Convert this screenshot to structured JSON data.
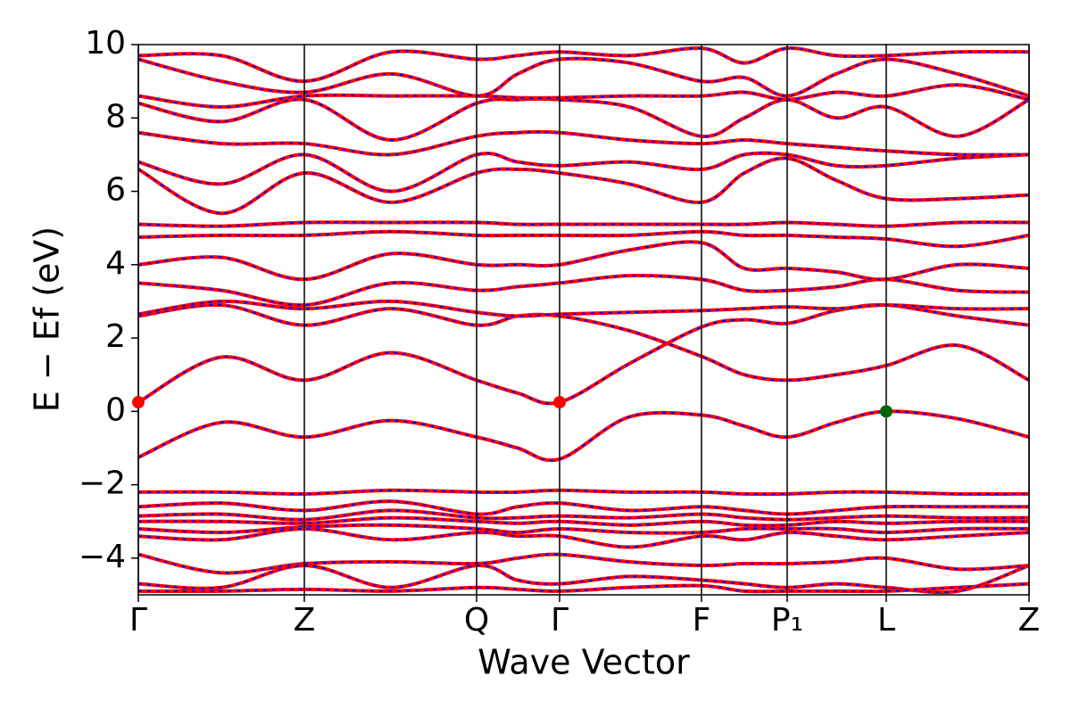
{
  "chart_data": {
    "type": "line",
    "xlabel": "Wave Vector",
    "ylabel": "E − Ef (eV)",
    "xlim": [
      0,
      9.98
    ],
    "ylim": [
      -5,
      10
    ],
    "xticks": [
      {
        "value": 0,
        "label": "Γ"
      },
      {
        "value": 1.86,
        "label": "Z"
      },
      {
        "value": 3.79,
        "label": "Q"
      },
      {
        "value": 4.72,
        "label": "Γ"
      },
      {
        "value": 6.31,
        "label": "F"
      },
      {
        "value": 7.27,
        "label": "P₁"
      },
      {
        "value": 8.38,
        "label": "L"
      },
      {
        "value": 9.98,
        "label": "Z"
      }
    ],
    "yticks": [
      {
        "value": -4,
        "label": "−4"
      },
      {
        "value": -2,
        "label": "−2"
      },
      0,
      2,
      4,
      6,
      8,
      10
    ],
    "grid": "x",
    "color": "#ff0000",
    "overlay_color": "#0000ff",
    "x": [
      0,
      0.93,
      1.86,
      2.83,
      3.79,
      4.25,
      4.72,
      5.5,
      6.31,
      6.79,
      7.27,
      7.82,
      8.38,
      9.18,
      9.98
    ],
    "series": [
      {
        "values": [
          0.25,
          1.48,
          0.85,
          1.6,
          0.85,
          0.5,
          0.25,
          1.3,
          2.3,
          2.5,
          2.4,
          2.75,
          2.9,
          2.6,
          2.35
        ]
      },
      {
        "values": [
          2.6,
          2.9,
          2.35,
          2.8,
          2.35,
          2.6,
          2.6,
          2.2,
          1.5,
          1.0,
          0.85,
          1.0,
          1.25,
          1.8,
          0.85
        ]
      },
      {
        "values": [
          2.65,
          3.0,
          2.8,
          3.0,
          2.7,
          2.6,
          2.65,
          2.7,
          2.75,
          2.8,
          2.85,
          2.8,
          2.9,
          2.8,
          2.8
        ]
      },
      {
        "values": [
          3.5,
          3.3,
          2.9,
          3.5,
          3.3,
          3.4,
          3.5,
          3.7,
          3.6,
          3.3,
          3.3,
          3.4,
          3.6,
          3.3,
          3.25
        ]
      },
      {
        "values": [
          4.0,
          4.2,
          3.6,
          4.3,
          4.0,
          4.0,
          4.0,
          4.4,
          4.6,
          3.9,
          3.9,
          3.8,
          3.6,
          4.0,
          3.9
        ]
      },
      {
        "values": [
          4.75,
          4.8,
          4.8,
          4.9,
          4.8,
          4.8,
          4.8,
          4.8,
          4.9,
          4.8,
          4.8,
          4.75,
          4.7,
          4.5,
          4.8
        ]
      },
      {
        "values": [
          5.1,
          5.05,
          5.15,
          5.15,
          5.15,
          5.1,
          5.1,
          5.1,
          5.1,
          5.1,
          5.15,
          5.1,
          5.05,
          5.15,
          5.15
        ]
      },
      {
        "values": [
          6.6,
          5.4,
          6.5,
          5.7,
          6.5,
          6.6,
          6.5,
          6.2,
          5.7,
          6.5,
          6.9,
          6.3,
          5.8,
          5.8,
          5.9
        ]
      },
      {
        "values": [
          6.8,
          6.2,
          7.0,
          6.0,
          7.0,
          6.8,
          6.7,
          6.8,
          6.6,
          7.0,
          7.0,
          6.7,
          6.7,
          6.9,
          7.0
        ]
      },
      {
        "values": [
          7.6,
          7.3,
          7.3,
          7.0,
          7.5,
          7.6,
          7.6,
          7.4,
          7.3,
          7.4,
          7.3,
          7.2,
          7.1,
          7.0,
          7.0
        ]
      },
      {
        "values": [
          8.4,
          7.9,
          8.5,
          7.4,
          8.4,
          8.5,
          8.5,
          8.3,
          7.5,
          8.0,
          8.5,
          8.0,
          8.3,
          7.5,
          8.5
        ]
      },
      {
        "values": [
          8.6,
          8.3,
          8.6,
          8.6,
          8.6,
          8.55,
          8.55,
          8.6,
          8.6,
          8.7,
          8.5,
          8.7,
          8.6,
          8.9,
          8.5
        ]
      },
      {
        "values": [
          9.6,
          9.0,
          8.7,
          9.2,
          8.6,
          9.2,
          9.6,
          9.5,
          9.0,
          9.1,
          8.6,
          9.2,
          9.6,
          9.2,
          8.6
        ]
      },
      {
        "values": [
          9.7,
          9.7,
          9.0,
          9.8,
          9.6,
          9.7,
          9.8,
          9.7,
          9.9,
          9.5,
          9.9,
          9.7,
          9.7,
          9.8,
          9.8
        ]
      },
      {
        "values": [
          -1.25,
          -0.3,
          -0.7,
          -0.25,
          -0.7,
          -1.0,
          -1.3,
          -0.15,
          -0.1,
          -0.4,
          -0.7,
          -0.3,
          0,
          -0.2,
          -0.7
        ]
      },
      {
        "values": [
          -2.2,
          -2.2,
          -2.25,
          -2.15,
          -2.2,
          -2.2,
          -2.15,
          -2.2,
          -2.2,
          -2.25,
          -2.25,
          -2.2,
          -2.2,
          -2.25,
          -2.25
        ]
      },
      {
        "values": [
          -2.6,
          -2.5,
          -2.7,
          -2.45,
          -2.8,
          -2.6,
          -2.5,
          -2.7,
          -2.6,
          -2.7,
          -2.8,
          -2.7,
          -2.6,
          -2.6,
          -2.6
        ]
      },
      {
        "values": [
          -2.85,
          -2.8,
          -2.95,
          -2.7,
          -2.9,
          -2.9,
          -2.85,
          -2.9,
          -2.8,
          -2.9,
          -2.95,
          -2.9,
          -2.85,
          -2.9,
          -2.9
        ]
      },
      {
        "values": [
          -3.0,
          -3.0,
          -3.05,
          -2.9,
          -3.0,
          -3.05,
          -3.0,
          -3.1,
          -3.0,
          -3.1,
          -3.1,
          -3.0,
          -3.05,
          -3.0,
          -3.0
        ]
      },
      {
        "values": [
          -3.2,
          -3.3,
          -3.15,
          -3.1,
          -3.2,
          -3.3,
          -3.2,
          -3.3,
          -3.3,
          -3.2,
          -3.2,
          -3.2,
          -3.3,
          -3.2,
          -3.2
        ]
      },
      {
        "values": [
          -3.4,
          -3.5,
          -3.2,
          -3.5,
          -3.3,
          -3.4,
          -3.4,
          -3.7,
          -3.4,
          -3.5,
          -3.3,
          -3.4,
          -3.5,
          -3.4,
          -3.3
        ]
      },
      {
        "values": [
          -3.9,
          -4.4,
          -4.15,
          -4.1,
          -4.15,
          -4.0,
          -3.9,
          -4.1,
          -4.2,
          -4.15,
          -4.15,
          -4.1,
          -4.0,
          -4.3,
          -4.2
        ]
      },
      {
        "values": [
          -4.7,
          -4.8,
          -4.2,
          -4.8,
          -4.2,
          -4.6,
          -4.7,
          -4.5,
          -4.6,
          -4.7,
          -4.8,
          -4.7,
          -4.8,
          -4.9,
          -4.2
        ]
      },
      {
        "values": [
          -4.9,
          -4.9,
          -4.85,
          -4.9,
          -4.8,
          -4.85,
          -4.9,
          -4.8,
          -4.75,
          -4.9,
          -4.9,
          -4.9,
          -4.9,
          -4.8,
          -4.7
        ]
      }
    ],
    "points": [
      {
        "x": 0,
        "y": 0.25,
        "color": "#ff0000"
      },
      {
        "x": 4.72,
        "y": 0.25,
        "color": "#ff0000"
      },
      {
        "x": 8.38,
        "y": 0,
        "color": "#006400"
      }
    ]
  }
}
